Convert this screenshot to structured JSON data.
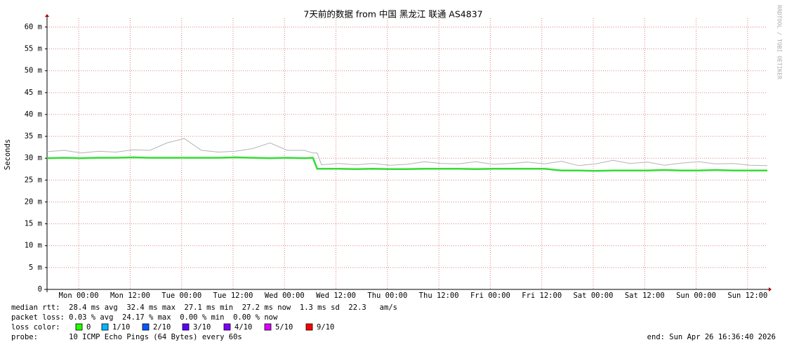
{
  "chart_data": {
    "type": "line",
    "title": "7天前的数据 from 中国 黑龙江 联通 AS4837",
    "y_label": "Seconds",
    "watermark": "RRDTOOL / TOBI OETIKER",
    "ylim": [
      0,
      0.062
    ],
    "yticks": [
      0,
      {
        "value": 0.005,
        "label": "5 m"
      },
      {
        "value": 0.01,
        "label": "10 m"
      },
      {
        "value": 0.015,
        "label": "15 m"
      },
      {
        "value": 0.02,
        "label": "20 m"
      },
      {
        "value": 0.025,
        "label": "25 m"
      },
      {
        "value": 0.03,
        "label": "30 m"
      },
      {
        "value": 0.035,
        "label": "35 m"
      },
      {
        "value": 0.04,
        "label": "40 m"
      },
      {
        "value": 0.045,
        "label": "45 m"
      },
      {
        "value": 0.05,
        "label": "50 m"
      },
      {
        "value": 0.055,
        "label": "55 m"
      },
      {
        "value": 0.06,
        "label": "60 m"
      }
    ],
    "xlim": [
      0,
      168
    ],
    "xticks": [
      {
        "value": 7.39,
        "label": "Mon 00:00"
      },
      {
        "value": 19.39,
        "label": "Mon 12:00"
      },
      {
        "value": 31.39,
        "label": "Tue 00:00"
      },
      {
        "value": 43.39,
        "label": "Tue 12:00"
      },
      {
        "value": 55.39,
        "label": "Wed 00:00"
      },
      {
        "value": 67.39,
        "label": "Wed 12:00"
      },
      {
        "value": 79.39,
        "label": "Thu 00:00"
      },
      {
        "value": 91.39,
        "label": "Thu 12:00"
      },
      {
        "value": 103.39,
        "label": "Fri 00:00"
      },
      {
        "value": 115.39,
        "label": "Fri 12:00"
      },
      {
        "value": 127.39,
        "label": "Sat 00:00"
      },
      {
        "value": 139.39,
        "label": "Sat 12:00"
      },
      {
        "value": 151.39,
        "label": "Sun 00:00"
      },
      {
        "value": 163.39,
        "label": "Sun 12:00"
      }
    ],
    "grid": true,
    "x": [
      0,
      4,
      8,
      12,
      16,
      20,
      24,
      28,
      32,
      36,
      40,
      44,
      48,
      52,
      56,
      60,
      62,
      63,
      64,
      68,
      72,
      76,
      80,
      84,
      88,
      92,
      96,
      100,
      104,
      108,
      112,
      116,
      120,
      124,
      128,
      132,
      136,
      140,
      144,
      148,
      152,
      156,
      160,
      164,
      168
    ],
    "series": [
      {
        "color": "#b4b4b4",
        "values": [
          0.0315,
          0.0318,
          0.0312,
          0.0316,
          0.0314,
          0.0319,
          0.0318,
          0.0335,
          0.0345,
          0.0318,
          0.0314,
          0.0316,
          0.0322,
          0.0335,
          0.0318,
          0.0318,
          0.0312,
          0.0312,
          0.0285,
          0.0288,
          0.0285,
          0.0288,
          0.0284,
          0.0286,
          0.0292,
          0.0288,
          0.0287,
          0.0292,
          0.0286,
          0.0288,
          0.0291,
          0.0287,
          0.0293,
          0.0283,
          0.0287,
          0.0295,
          0.0288,
          0.0291,
          0.0284,
          0.0289,
          0.0292,
          0.0287,
          0.0288,
          0.0284,
          0.0283
        ]
      },
      {
        "color": "#33dd33",
        "values": [
          0.03,
          0.0301,
          0.03,
          0.0301,
          0.0301,
          0.0302,
          0.0301,
          0.0301,
          0.0301,
          0.0301,
          0.0301,
          0.0302,
          0.0301,
          0.03,
          0.0301,
          0.03,
          0.0301,
          0.0276,
          0.0276,
          0.0276,
          0.0275,
          0.0276,
          0.0275,
          0.0275,
          0.0276,
          0.0276,
          0.0276,
          0.0275,
          0.0276,
          0.0276,
          0.0276,
          0.0276,
          0.0272,
          0.0272,
          0.0271,
          0.0272,
          0.0272,
          0.0272,
          0.0273,
          0.0272,
          0.0272,
          0.0273,
          0.0272,
          0.0272,
          0.0272
        ]
      }
    ],
    "stats": [
      "median rtt:  28.4 ms avg  32.4 ms max  27.1 ms min  27.2 ms now  1.3 ms sd  22.3   am/s",
      "packet loss: 0.03 % avg  24.17 % max  0.00 % min  0.00 % now"
    ],
    "loss_title": "loss color:",
    "loss_colors": [
      {
        "label": "0",
        "color": "#26ff00"
      },
      {
        "label": "1/10",
        "color": "#00b8ff"
      },
      {
        "label": "2/10",
        "color": "#0059ff"
      },
      {
        "label": "3/10",
        "color": "#5e00ff"
      },
      {
        "label": "4/10",
        "color": "#7e00ff"
      },
      {
        "label": "5/10",
        "color": "#dd00ff"
      },
      {
        "label": "9/10",
        "color": "#ff0000"
      }
    ],
    "probe": "probe:       10 ICMP Echo Pings (64 Bytes) every 60s",
    "end": "end: Sun Apr 26 16:36:40 2026"
  }
}
